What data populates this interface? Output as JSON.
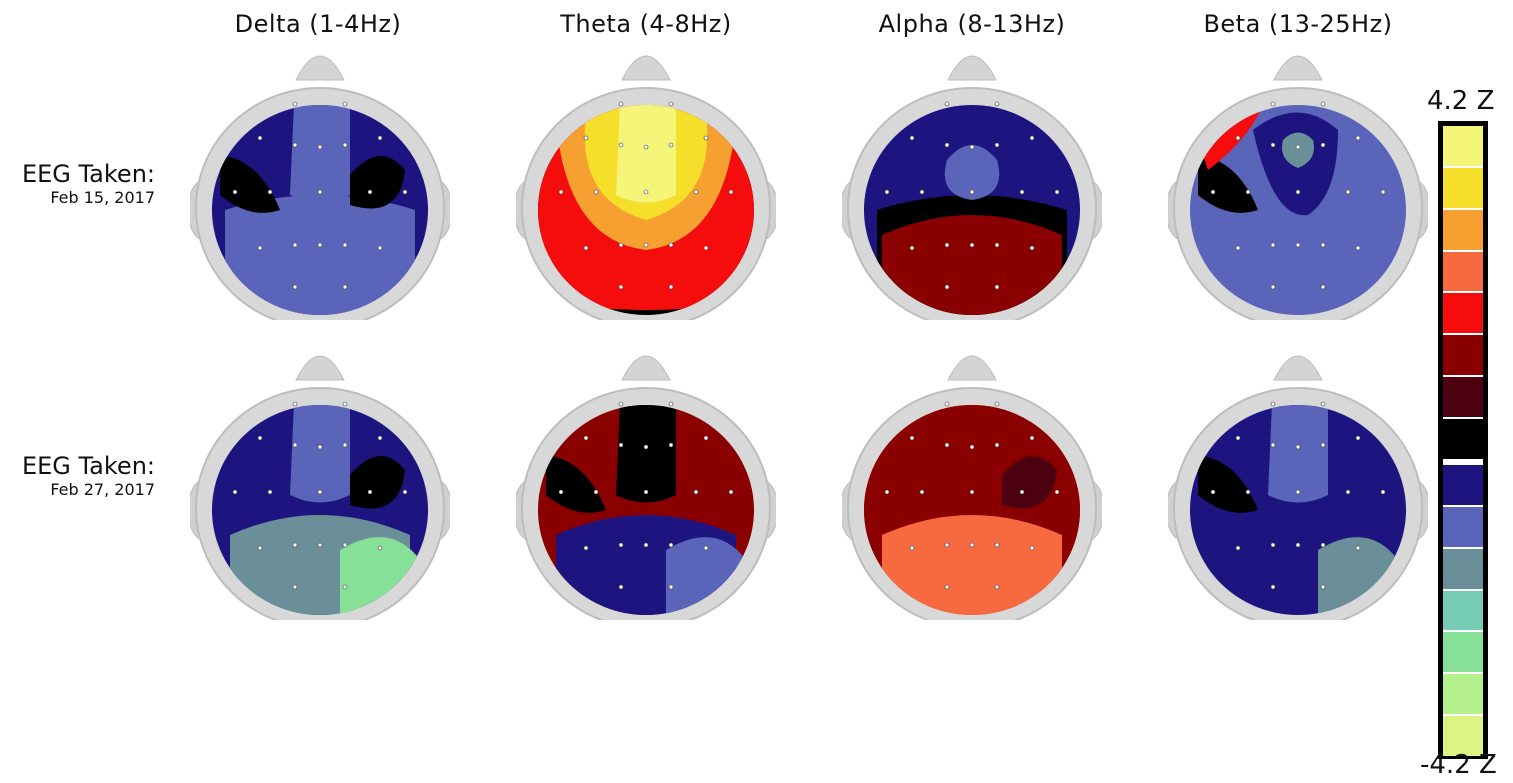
{
  "bands": [
    {
      "label": "Delta (1-4Hz)"
    },
    {
      "label": "Theta (4-8Hz)"
    },
    {
      "label": "Alpha (8-13Hz)"
    },
    {
      "label": "Beta (13-25Hz)"
    }
  ],
  "rows": [
    {
      "label": "EEG Taken:",
      "date": "Feb 15, 2017"
    },
    {
      "label": "EEG Taken:",
      "date": "Feb 27, 2017"
    }
  ],
  "colorbar": {
    "max_label": "4.2 Z",
    "min_label": "-4.2 Z",
    "colors_top_to_bottom": [
      "#f5f57a",
      "#f5df2a",
      "#f5a030",
      "#f76a40",
      "#f50d0d",
      "#8a0000",
      "#4d0010",
      "#000000",
      "#1e1480",
      "#5a64b8",
      "#6a8f98",
      "#76ccb4",
      "#86e098",
      "#b4f08c",
      "#dcf582"
    ]
  },
  "maps": [
    [
      {
        "base": "#1e1480",
        "blobs": [
          {
            "c": "#5a64b8",
            "shape": "frontal-strip"
          },
          {
            "c": "#5a64b8",
            "shape": "posterior"
          },
          {
            "c": "#000000",
            "shape": "left-temporal"
          },
          {
            "c": "#000000",
            "shape": "right-temporal"
          }
        ]
      },
      {
        "base": "#000000",
        "blobs": [
          {
            "c": "#f50d0d",
            "shape": "wide"
          },
          {
            "c": "#f5a030",
            "shape": "mid"
          },
          {
            "c": "#f5df2a",
            "shape": "center"
          },
          {
            "c": "#f5f57a",
            "shape": "frontal-strip"
          }
        ]
      },
      {
        "base": "#1e1480",
        "blobs": [
          {
            "c": "#000000",
            "shape": "posterior"
          },
          {
            "c": "#8a0000",
            "shape": "occipital"
          },
          {
            "c": "#5a64b8",
            "shape": "center-small"
          }
        ]
      },
      {
        "base": "#5a64b8",
        "blobs": [
          {
            "c": "#000000",
            "shape": "left-temporal"
          },
          {
            "c": "#f50d0d",
            "shape": "left-frontal"
          },
          {
            "c": "#1e1480",
            "shape": "frontal-ring"
          },
          {
            "c": "#6a8f98",
            "shape": "frontal-spot"
          }
        ]
      }
    ],
    [
      {
        "base": "#1e1480",
        "blobs": [
          {
            "c": "#5a64b8",
            "shape": "frontal-strip"
          },
          {
            "c": "#000000",
            "shape": "right-temporal"
          },
          {
            "c": "#6a8f98",
            "shape": "occipital"
          },
          {
            "c": "#86e098",
            "shape": "occipital-right"
          }
        ]
      },
      {
        "base": "#8a0000",
        "blobs": [
          {
            "c": "#000000",
            "shape": "frontal-strip"
          },
          {
            "c": "#1e1480",
            "shape": "occipital"
          },
          {
            "c": "#5a64b8",
            "shape": "occipital-right"
          },
          {
            "c": "#000000",
            "shape": "left-temporal"
          }
        ]
      },
      {
        "base": "#f50d0d",
        "blobs": [
          {
            "c": "#8a0000",
            "shape": "wide"
          },
          {
            "c": "#4d0010",
            "shape": "right-temporal"
          },
          {
            "c": "#f76a40",
            "shape": "occipital"
          }
        ]
      },
      {
        "base": "#1e1480",
        "blobs": [
          {
            "c": "#5a64b8",
            "shape": "frontal-strip"
          },
          {
            "c": "#000000",
            "shape": "left-temporal"
          },
          {
            "c": "#6a8f98",
            "shape": "occipital-right"
          }
        ]
      }
    ]
  ]
}
